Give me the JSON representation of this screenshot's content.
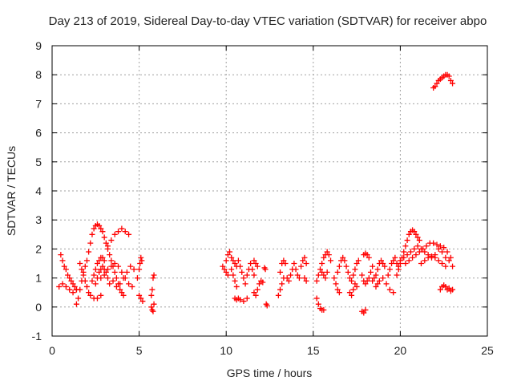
{
  "chart_data": {
    "type": "scatter",
    "title": "Day 213 of 2019, Sidereal Day-to-day VTEC variation (SDTVAR) for receiver abpo",
    "xlabel": "GPS time / hours",
    "ylabel": "SDTVAR / TECUs",
    "xlim": [
      0,
      25
    ],
    "ylim": [
      -1,
      9
    ],
    "xticks": [
      0,
      5,
      10,
      15,
      20,
      25
    ],
    "yticks": [
      -1,
      0,
      1,
      2,
      3,
      4,
      5,
      6,
      7,
      8,
      9
    ],
    "grid": true,
    "marker": "+",
    "color": "#ff0000",
    "series": [
      {
        "name": "SDTVAR",
        "points": [
          [
            0.5,
            1.8
          ],
          [
            0.6,
            1.6
          ],
          [
            0.7,
            1.4
          ],
          [
            0.8,
            1.3
          ],
          [
            0.9,
            1.1
          ],
          [
            1.0,
            1.0
          ],
          [
            1.1,
            0.9
          ],
          [
            1.2,
            0.8
          ],
          [
            1.3,
            0.7
          ],
          [
            1.4,
            0.6
          ],
          [
            0.4,
            0.7
          ],
          [
            0.6,
            0.8
          ],
          [
            0.8,
            0.7
          ],
          [
            1.0,
            0.6
          ],
          [
            1.2,
            0.5
          ],
          [
            1.4,
            0.6
          ],
          [
            1.4,
            0.1
          ],
          [
            1.5,
            0.3
          ],
          [
            1.6,
            0.6
          ],
          [
            1.7,
            0.9
          ],
          [
            1.8,
            1.2
          ],
          [
            1.9,
            1.4
          ],
          [
            2.0,
            1.6
          ],
          [
            2.1,
            1.9
          ],
          [
            2.2,
            2.2
          ],
          [
            2.3,
            2.5
          ],
          [
            2.4,
            2.7
          ],
          [
            2.5,
            2.8
          ],
          [
            2.6,
            2.85
          ],
          [
            2.7,
            2.8
          ],
          [
            2.8,
            2.7
          ],
          [
            2.9,
            2.6
          ],
          [
            3.0,
            2.4
          ],
          [
            3.1,
            2.2
          ],
          [
            3.2,
            2.0
          ],
          [
            3.3,
            1.8
          ],
          [
            3.4,
            1.6
          ],
          [
            3.5,
            1.4
          ],
          [
            3.6,
            1.2
          ],
          [
            3.7,
            1.0
          ],
          [
            3.8,
            0.8
          ],
          [
            3.9,
            0.6
          ],
          [
            4.0,
            0.5
          ],
          [
            4.1,
            0.4
          ],
          [
            1.6,
            1.5
          ],
          [
            1.7,
            1.3
          ],
          [
            1.8,
            1.1
          ],
          [
            1.9,
            0.9
          ],
          [
            2.0,
            0.7
          ],
          [
            2.1,
            0.5
          ],
          [
            2.2,
            0.4
          ],
          [
            2.4,
            0.3
          ],
          [
            2.6,
            0.3
          ],
          [
            2.8,
            0.4
          ],
          [
            2.3,
            0.9
          ],
          [
            2.4,
            1.1
          ],
          [
            2.5,
            1.3
          ],
          [
            2.6,
            1.5
          ],
          [
            2.7,
            1.6
          ],
          [
            2.8,
            1.7
          ],
          [
            2.9,
            1.7
          ],
          [
            3.0,
            1.6
          ],
          [
            2.5,
            0.8
          ],
          [
            2.6,
            1.0
          ],
          [
            2.7,
            1.2
          ],
          [
            2.8,
            1.3
          ],
          [
            2.9,
            1.4
          ],
          [
            3.0,
            1.3
          ],
          [
            3.1,
            1.2
          ],
          [
            3.2,
            1.0
          ],
          [
            3.3,
            0.8
          ],
          [
            2.8,
            1.0
          ],
          [
            3.0,
            1.1
          ],
          [
            3.2,
            1.3
          ],
          [
            3.4,
            1.4
          ],
          [
            3.6,
            1.5
          ],
          [
            3.8,
            1.4
          ],
          [
            4.0,
            1.2
          ],
          [
            4.2,
            1.0
          ],
          [
            4.4,
            0.8
          ],
          [
            4.6,
            0.7
          ],
          [
            3.2,
            2.1
          ],
          [
            3.4,
            2.3
          ],
          [
            3.6,
            2.5
          ],
          [
            3.8,
            2.6
          ],
          [
            4.0,
            2.7
          ],
          [
            4.2,
            2.6
          ],
          [
            4.4,
            2.5
          ],
          [
            3.5,
            0.9
          ],
          [
            3.7,
            0.7
          ],
          [
            3.9,
            0.8
          ],
          [
            4.1,
            1.0
          ],
          [
            4.3,
            1.2
          ],
          [
            4.5,
            1.4
          ],
          [
            4.7,
            1.3
          ],
          [
            4.9,
            1.0
          ],
          [
            5.0,
            0.4
          ],
          [
            5.1,
            0.3
          ],
          [
            5.2,
            0.2
          ],
          [
            5.0,
            1.3
          ],
          [
            5.05,
            1.5
          ],
          [
            5.1,
            1.7
          ],
          [
            5.15,
            1.6
          ],
          [
            5.7,
            0.0
          ],
          [
            5.75,
            -0.1
          ],
          [
            5.8,
            -0.15
          ],
          [
            5.85,
            0.1
          ],
          [
            5.7,
            0.4
          ],
          [
            5.75,
            0.6
          ],
          [
            5.8,
            1.0
          ],
          [
            5.85,
            1.1
          ],
          [
            9.8,
            1.4
          ],
          [
            9.9,
            1.3
          ],
          [
            10.0,
            1.2
          ],
          [
            10.1,
            1.1
          ],
          [
            10.0,
            1.6
          ],
          [
            10.1,
            1.8
          ],
          [
            10.2,
            1.9
          ],
          [
            10.3,
            1.7
          ],
          [
            10.3,
            1.3
          ],
          [
            10.4,
            1.1
          ],
          [
            10.5,
            0.9
          ],
          [
            10.6,
            0.7
          ],
          [
            10.4,
            1.6
          ],
          [
            10.5,
            1.5
          ],
          [
            10.6,
            1.4
          ],
          [
            10.5,
            0.3
          ],
          [
            10.6,
            0.25
          ],
          [
            10.7,
            0.3
          ],
          [
            10.8,
            0.25
          ],
          [
            11.0,
            0.2
          ],
          [
            11.2,
            0.3
          ],
          [
            10.7,
            1.6
          ],
          [
            10.8,
            1.4
          ],
          [
            10.9,
            1.2
          ],
          [
            11.0,
            1.0
          ],
          [
            11.1,
            0.8
          ],
          [
            11.2,
            1.1
          ],
          [
            11.3,
            1.3
          ],
          [
            11.4,
            1.5
          ],
          [
            11.5,
            1.3
          ],
          [
            11.6,
            1.1
          ],
          [
            11.6,
            1.6
          ],
          [
            11.7,
            1.5
          ],
          [
            11.8,
            1.4
          ],
          [
            11.6,
            0.5
          ],
          [
            11.7,
            0.4
          ],
          [
            11.8,
            0.6
          ],
          [
            11.9,
            0.8
          ],
          [
            12.0,
            0.9
          ],
          [
            12.1,
            0.85
          ],
          [
            12.2,
            1.35
          ],
          [
            12.25,
            1.3
          ],
          [
            12.3,
            0.1
          ],
          [
            12.35,
            0.05
          ],
          [
            13.0,
            0.4
          ],
          [
            13.1,
            0.6
          ],
          [
            13.2,
            0.8
          ],
          [
            13.3,
            1.0
          ],
          [
            13.1,
            1.2
          ],
          [
            13.2,
            1.5
          ],
          [
            13.3,
            1.6
          ],
          [
            13.4,
            1.5
          ],
          [
            13.5,
            1.0
          ],
          [
            13.6,
            0.9
          ],
          [
            13.7,
            1.1
          ],
          [
            13.8,
            1.3
          ],
          [
            13.9,
            1.5
          ],
          [
            14.0,
            1.3
          ],
          [
            14.1,
            1.1
          ],
          [
            14.2,
            1.0
          ],
          [
            14.3,
            1.4
          ],
          [
            14.4,
            1.6
          ],
          [
            14.5,
            1.7
          ],
          [
            14.6,
            1.5
          ],
          [
            14.5,
            1.0
          ],
          [
            14.6,
            0.9
          ],
          [
            15.2,
            0.9
          ],
          [
            15.3,
            1.1
          ],
          [
            15.4,
            1.3
          ],
          [
            15.5,
            1.5
          ],
          [
            15.6,
            1.7
          ],
          [
            15.7,
            1.8
          ],
          [
            15.8,
            1.9
          ],
          [
            15.9,
            1.8
          ],
          [
            16.0,
            1.6
          ],
          [
            15.2,
            0.3
          ],
          [
            15.3,
            0.1
          ],
          [
            15.4,
            -0.05
          ],
          [
            15.5,
            -0.1
          ],
          [
            15.6,
            -0.1
          ],
          [
            15.5,
            1.2
          ],
          [
            15.6,
            1.1
          ],
          [
            15.7,
            1.0
          ],
          [
            15.8,
            1.2
          ],
          [
            16.2,
            1.0
          ],
          [
            16.3,
            0.8
          ],
          [
            16.4,
            0.6
          ],
          [
            16.5,
            0.5
          ],
          [
            16.4,
            1.2
          ],
          [
            16.5,
            1.4
          ],
          [
            16.6,
            1.6
          ],
          [
            16.7,
            1.7
          ],
          [
            16.8,
            1.6
          ],
          [
            16.9,
            1.4
          ],
          [
            17.0,
            1.2
          ],
          [
            17.1,
            1.0
          ],
          [
            17.2,
            0.9
          ],
          [
            17.3,
            1.1
          ],
          [
            17.4,
            1.3
          ],
          [
            17.5,
            1.5
          ],
          [
            17.6,
            1.6
          ],
          [
            17.1,
            0.5
          ],
          [
            17.2,
            0.4
          ],
          [
            17.3,
            0.6
          ],
          [
            17.4,
            0.8
          ],
          [
            17.5,
            0.7
          ],
          [
            17.8,
            -0.15
          ],
          [
            17.9,
            -0.2
          ],
          [
            18.0,
            -0.1
          ],
          [
            17.8,
            1.1
          ],
          [
            17.9,
            0.9
          ],
          [
            18.0,
            0.8
          ],
          [
            18.1,
            0.9
          ],
          [
            18.2,
            1.0
          ],
          [
            18.3,
            1.2
          ],
          [
            18.4,
            1.4
          ],
          [
            17.9,
            1.8
          ],
          [
            18.0,
            1.85
          ],
          [
            18.1,
            1.8
          ],
          [
            18.2,
            1.7
          ],
          [
            18.4,
            0.9
          ],
          [
            18.5,
            1.0
          ],
          [
            18.6,
            1.1
          ],
          [
            18.7,
            1.3
          ],
          [
            18.8,
            1.5
          ],
          [
            18.9,
            1.6
          ],
          [
            19.0,
            1.5
          ],
          [
            19.1,
            1.4
          ],
          [
            18.6,
            0.7
          ],
          [
            18.7,
            0.8
          ],
          [
            18.8,
            0.9
          ],
          [
            19.0,
            1.0
          ],
          [
            19.2,
            0.8
          ],
          [
            19.4,
            0.6
          ],
          [
            19.6,
            0.5
          ],
          [
            19.3,
            1.1
          ],
          [
            19.4,
            1.3
          ],
          [
            19.5,
            1.5
          ],
          [
            19.6,
            1.6
          ],
          [
            19.7,
            1.7
          ],
          [
            19.8,
            1.5
          ],
          [
            19.9,
            1.4
          ],
          [
            19.8,
            1.1
          ],
          [
            19.9,
            1.3
          ],
          [
            20.0,
            1.5
          ],
          [
            20.1,
            1.7
          ],
          [
            20.2,
            1.9
          ],
          [
            20.3,
            2.1
          ],
          [
            20.4,
            2.3
          ],
          [
            20.5,
            2.5
          ],
          [
            20.6,
            2.6
          ],
          [
            20.7,
            2.65
          ],
          [
            20.8,
            2.6
          ],
          [
            20.9,
            2.5
          ],
          [
            21.0,
            2.4
          ],
          [
            21.1,
            2.3
          ],
          [
            20.0,
            1.6
          ],
          [
            20.2,
            1.7
          ],
          [
            20.4,
            1.8
          ],
          [
            20.6,
            1.9
          ],
          [
            20.8,
            2.0
          ],
          [
            21.0,
            2.1
          ],
          [
            21.2,
            2.0
          ],
          [
            21.4,
            1.9
          ],
          [
            21.6,
            1.8
          ],
          [
            21.8,
            1.7
          ],
          [
            22.0,
            1.8
          ],
          [
            22.2,
            2.0
          ],
          [
            22.4,
            1.9
          ],
          [
            22.6,
            1.7
          ],
          [
            22.8,
            1.6
          ],
          [
            23.0,
            1.4
          ],
          [
            20.3,
            1.5
          ],
          [
            20.5,
            1.6
          ],
          [
            20.7,
            1.7
          ],
          [
            20.9,
            1.8
          ],
          [
            21.1,
            1.9
          ],
          [
            21.3,
            2.0
          ],
          [
            21.5,
            2.1
          ],
          [
            21.7,
            2.2
          ],
          [
            21.9,
            2.2
          ],
          [
            22.1,
            2.15
          ],
          [
            22.3,
            2.1
          ],
          [
            22.5,
            2.05
          ],
          [
            22.7,
            1.9
          ],
          [
            22.9,
            1.7
          ],
          [
            21.2,
            1.5
          ],
          [
            21.4,
            1.6
          ],
          [
            21.6,
            1.7
          ],
          [
            21.8,
            1.75
          ],
          [
            22.0,
            1.7
          ],
          [
            22.2,
            1.6
          ],
          [
            22.4,
            1.5
          ],
          [
            22.6,
            1.4
          ],
          [
            22.3,
            0.6
          ],
          [
            22.4,
            0.7
          ],
          [
            22.5,
            0.75
          ],
          [
            22.6,
            0.7
          ],
          [
            22.7,
            0.6
          ],
          [
            22.8,
            0.65
          ],
          [
            22.9,
            0.55
          ],
          [
            23.0,
            0.6
          ],
          [
            21.9,
            7.55
          ],
          [
            22.0,
            7.6
          ],
          [
            22.1,
            7.7
          ],
          [
            22.2,
            7.8
          ],
          [
            22.3,
            7.85
          ],
          [
            22.4,
            7.9
          ],
          [
            22.5,
            7.95
          ],
          [
            22.6,
            8.0
          ],
          [
            22.7,
            8.0
          ],
          [
            22.8,
            7.95
          ],
          [
            22.9,
            7.8
          ],
          [
            23.0,
            7.7
          ]
        ]
      }
    ]
  }
}
